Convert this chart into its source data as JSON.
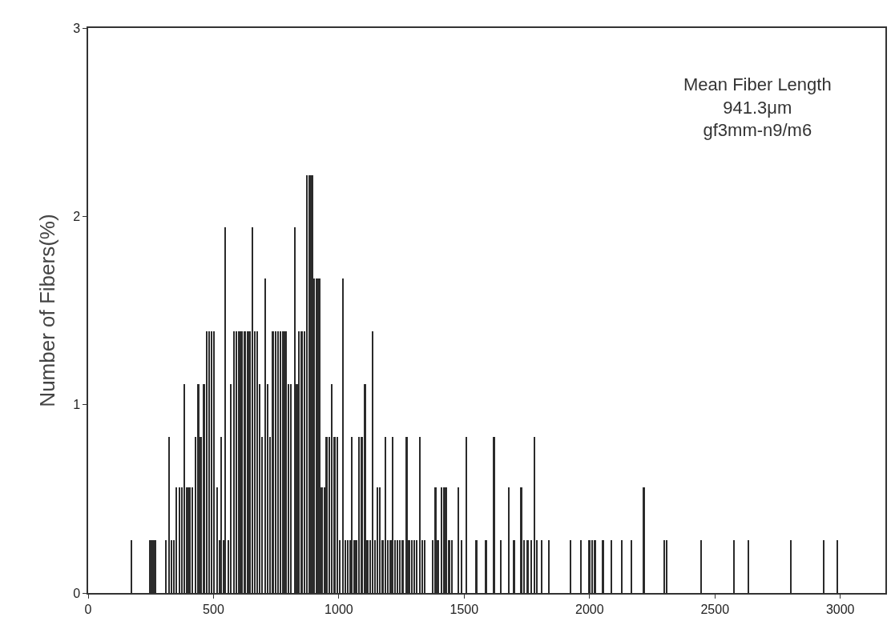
{
  "chart_data": {
    "type": "bar",
    "ylabel": "Number of Fibers(%)",
    "annotations": [
      "Mean Fiber Length\n941.3μm\ngf3mm-n9/m6"
    ],
    "x": [
      173,
      248,
      258,
      268,
      310,
      323,
      333,
      342,
      352,
      365,
      375,
      385,
      395,
      405,
      417,
      430,
      440,
      450,
      463,
      473,
      483,
      493,
      503,
      515,
      525,
      531,
      540,
      548,
      560,
      570,
      583,
      593,
      603,
      613,
      625,
      636,
      645,
      655,
      665,
      675,
      685,
      695,
      707,
      717,
      726,
      738,
      748,
      758,
      768,
      779,
      789,
      800,
      810,
      825,
      833,
      841,
      852,
      864,
      874,
      884,
      894,
      903,
      913,
      923,
      933,
      943,
      952,
      962,
      972,
      984,
      995,
      1005,
      1017,
      1027,
      1037,
      1045,
      1053,
      1063,
      1072,
      1082,
      1092,
      1105,
      1115,
      1125,
      1135,
      1145,
      1155,
      1165,
      1175,
      1187,
      1197,
      1207,
      1216,
      1225,
      1235,
      1245,
      1255,
      1271,
      1281,
      1291,
      1301,
      1312,
      1323,
      1333,
      1343,
      1376,
      1386,
      1396,
      1411,
      1420,
      1428,
      1440,
      1451,
      1477,
      1490,
      1510,
      1549,
      1588,
      1620,
      1647,
      1679,
      1700,
      1728,
      1740,
      1754,
      1768,
      1780,
      1790,
      1810,
      1839,
      1924,
      1967,
      2000,
      2011,
      2022,
      2054,
      2087,
      2130,
      2168,
      2217,
      2299,
      2309,
      2446,
      2576,
      2635,
      2804,
      2935,
      2990
    ],
    "values": [
      0.28,
      0.28,
      0.28,
      0.28,
      0.28,
      0.83,
      0.28,
      0.28,
      0.56,
      0.56,
      0.56,
      1.11,
      0.56,
      0.56,
      0.56,
      0.83,
      1.11,
      0.83,
      1.11,
      1.39,
      1.39,
      1.39,
      1.39,
      0.56,
      0.28,
      0.83,
      0.28,
      1.94,
      0.28,
      1.11,
      1.39,
      1.39,
      1.39,
      1.39,
      1.39,
      1.39,
      1.39,
      1.94,
      1.39,
      1.39,
      1.11,
      0.83,
      1.67,
      1.11,
      0.83,
      1.39,
      1.39,
      1.39,
      1.39,
      1.39,
      1.39,
      1.11,
      1.11,
      1.94,
      1.11,
      1.39,
      1.39,
      1.39,
      2.22,
      2.22,
      2.22,
      1.67,
      1.67,
      1.67,
      0.56,
      0.56,
      0.83,
      0.83,
      1.11,
      0.83,
      0.83,
      0.28,
      1.67,
      0.28,
      0.28,
      0.28,
      0.83,
      0.28,
      0.28,
      0.83,
      0.83,
      1.11,
      0.28,
      0.28,
      1.39,
      0.28,
      0.56,
      0.56,
      0.28,
      0.83,
      0.28,
      0.28,
      0.83,
      0.28,
      0.28,
      0.28,
      0.28,
      0.83,
      0.28,
      0.28,
      0.28,
      0.28,
      0.83,
      0.28,
      0.28,
      0.28,
      0.56,
      0.28,
      0.56,
      0.56,
      0.56,
      0.28,
      0.28,
      0.56,
      0.28,
      0.83,
      0.28,
      0.28,
      0.83,
      0.28,
      0.56,
      0.28,
      0.56,
      0.28,
      0.28,
      0.28,
      0.83,
      0.28,
      0.28,
      0.28,
      0.28,
      0.28,
      0.28,
      0.28,
      0.28,
      0.28,
      0.28,
      0.28,
      0.28,
      0.56,
      0.28,
      0.28,
      0.28,
      0.28,
      0.28,
      0.28,
      0.28,
      0.28
    ],
    "color": "#2b2b2b",
    "xlim": [
      0,
      3180
    ],
    "xticks": [
      0,
      500,
      1000,
      1500,
      2000,
      2500,
      3000
    ],
    "ylim": [
      0,
      3
    ],
    "yticks": [
      0,
      1,
      2,
      3
    ]
  }
}
